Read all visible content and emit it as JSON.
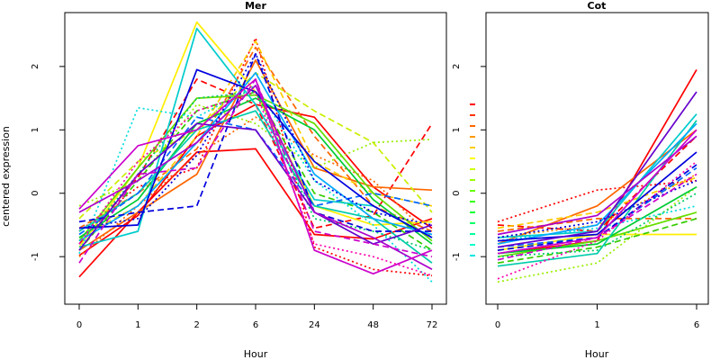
{
  "chart_data": [
    {
      "type": "line",
      "title": "Mer",
      "xlabel": "Hour",
      "ylabel": "centered expression",
      "categories": [
        "0",
        "1",
        "2",
        "6",
        "24",
        "48",
        "72"
      ],
      "ylim": [
        -1.75,
        2.85
      ],
      "yticks": [
        -1,
        0,
        1,
        2
      ],
      "legend": "none",
      "series": [
        {
          "color": "#ff0000",
          "dash": "solid",
          "values": [
            -1.32,
            -0.3,
            0.65,
            0.7,
            -0.65,
            -0.72,
            -0.4
          ]
        },
        {
          "color": "#ff0000",
          "dash": "solid",
          "values": [
            -0.98,
            -0.35,
            0.9,
            1.4,
            1.2,
            0.1,
            -0.55
          ]
        },
        {
          "color": "#ff0000",
          "dash": "dashed",
          "values": [
            -0.8,
            0.25,
            1.8,
            1.4,
            -0.55,
            -0.35,
            1.1
          ]
        },
        {
          "color": "#ff0000",
          "dash": "dotted",
          "values": [
            -0.6,
            0.1,
            0.4,
            2.45,
            -0.85,
            -1.2,
            -1.3
          ]
        },
        {
          "color": "#ff6600",
          "dash": "solid",
          "values": [
            -0.9,
            -0.3,
            0.3,
            2.1,
            0.4,
            0.1,
            0.05
          ]
        },
        {
          "color": "#ff6600",
          "dash": "dashed",
          "values": [
            -0.55,
            0.0,
            0.7,
            2.3,
            0.9,
            -0.2,
            -0.6
          ]
        },
        {
          "color": "#ff6600",
          "dash": "dotted",
          "values": [
            -1.0,
            -0.2,
            0.6,
            1.2,
            0.6,
            0.2,
            -0.7
          ]
        },
        {
          "color": "#ffcc00",
          "dash": "dashed",
          "values": [
            -0.7,
            -0.2,
            0.9,
            2.4,
            0.5,
            0.0,
            -0.2
          ]
        },
        {
          "color": "#ffee00",
          "dash": "solid",
          "values": [
            -0.85,
            0.4,
            2.7,
            1.6,
            -0.2,
            -0.5,
            -0.45
          ]
        },
        {
          "color": "#ccee00",
          "dash": "dashed",
          "values": [
            -0.4,
            0.5,
            1.0,
            1.9,
            1.3,
            0.8,
            -0.3
          ]
        },
        {
          "color": "#99ee00",
          "dash": "dotted",
          "values": [
            -0.2,
            0.2,
            1.4,
            1.1,
            0.4,
            0.8,
            0.85
          ]
        },
        {
          "color": "#66dd00",
          "dash": "solid",
          "values": [
            -0.75,
            0.4,
            1.5,
            1.55,
            1.1,
            0.0,
            -0.75
          ]
        },
        {
          "color": "#33cc00",
          "dash": "dashed",
          "values": [
            -0.9,
            0.2,
            1.3,
            1.6,
            0.0,
            -0.3,
            -0.9
          ]
        },
        {
          "color": "#00cc33",
          "dash": "solid",
          "values": [
            -0.7,
            -0.1,
            1.1,
            1.5,
            1.0,
            -0.1,
            -0.8
          ]
        },
        {
          "color": "#00cc66",
          "dash": "dotted",
          "values": [
            -0.8,
            0.3,
            1.5,
            1.6,
            -0.4,
            -0.6,
            -0.9
          ]
        },
        {
          "color": "#00ccaa",
          "dash": "solid",
          "values": [
            -0.6,
            0.0,
            1.0,
            1.3,
            -0.2,
            -0.4,
            -1.1
          ]
        },
        {
          "color": "#00dddd",
          "dash": "dotted",
          "values": [
            -0.95,
            1.35,
            1.2,
            1.7,
            0.2,
            -0.5,
            -1.4
          ]
        },
        {
          "color": "#00cccc",
          "dash": "solid",
          "values": [
            -0.85,
            -0.6,
            2.6,
            1.4,
            -0.1,
            -0.2,
            -0.7
          ]
        },
        {
          "color": "#00aaff",
          "dash": "solid",
          "values": [
            -0.75,
            -0.2,
            0.8,
            1.9,
            0.3,
            -0.4,
            -0.65
          ]
        },
        {
          "color": "#0066ff",
          "dash": "dashed",
          "values": [
            -0.65,
            0.0,
            1.2,
            1.0,
            -0.2,
            0.0,
            -0.2
          ]
        },
        {
          "color": "#0000dd",
          "dash": "solid",
          "values": [
            -0.55,
            -0.5,
            1.95,
            1.6,
            0.5,
            -0.2,
            -0.7
          ]
        },
        {
          "color": "#0000dd",
          "dash": "dashed",
          "values": [
            -0.45,
            -0.3,
            -0.2,
            2.2,
            -0.3,
            -0.6,
            -0.6
          ]
        },
        {
          "color": "#0000dd",
          "dash": "dotted",
          "values": [
            -0.55,
            -0.4,
            0.6,
            2.2,
            0.2,
            -0.3,
            -0.5
          ]
        },
        {
          "color": "#6600cc",
          "dash": "solid",
          "values": [
            -0.9,
            0.3,
            1.1,
            1.0,
            -0.3,
            -0.8,
            -0.5
          ]
        },
        {
          "color": "#aa00cc",
          "dash": "solid",
          "values": [
            -0.3,
            0.2,
            0.8,
            1.7,
            -0.3,
            -0.7,
            -1.2
          ]
        },
        {
          "color": "#cc00cc",
          "dash": "dashed",
          "values": [
            -1.1,
            0.3,
            0.4,
            1.8,
            -0.6,
            -0.8,
            -1.0
          ]
        },
        {
          "color": "#cc00cc",
          "dash": "solid",
          "values": [
            -0.25,
            0.75,
            1.0,
            1.8,
            -0.9,
            -1.27,
            -0.9
          ]
        },
        {
          "color": "#ff00aa",
          "dash": "dotted",
          "values": [
            -0.8,
            0.5,
            1.3,
            1.6,
            -0.8,
            -1.0,
            -1.3
          ]
        }
      ]
    },
    {
      "type": "line",
      "title": "Cot",
      "xlabel": "Hour",
      "ylabel": "",
      "categories": [
        "0",
        "1",
        "6"
      ],
      "ylim": [
        -1.75,
        2.85
      ],
      "yticks": [
        -1,
        0,
        1,
        2
      ],
      "legend": "left",
      "legend_swatches": [
        "#ff0000",
        "#ff3300",
        "#ff6600",
        "#ff9900",
        "#ffcc00",
        "#ffff00",
        "#ccff00",
        "#99ff00",
        "#66ff00",
        "#33ff00",
        "#00ff33",
        "#00ff66",
        "#00ff99",
        "#00ffcc",
        "#00e5e5"
      ],
      "series": [
        {
          "color": "#ff0000",
          "dash": "solid",
          "values": [
            -0.95,
            -0.75,
            1.95
          ]
        },
        {
          "color": "#ff0000",
          "dash": "dashed",
          "values": [
            -0.5,
            -0.6,
            0.9
          ]
        },
        {
          "color": "#ff0000",
          "dash": "dotted",
          "values": [
            -0.45,
            0.05,
            0.2
          ]
        },
        {
          "color": "#ff6600",
          "dash": "solid",
          "values": [
            -0.8,
            -0.2,
            1.0
          ]
        },
        {
          "color": "#ff6600",
          "dash": "dashed",
          "values": [
            -0.6,
            -0.4,
            -0.4
          ]
        },
        {
          "color": "#ff9900",
          "dash": "dotted",
          "values": [
            -0.7,
            -0.5,
            0.3
          ]
        },
        {
          "color": "#ffcc00",
          "dash": "dashed",
          "values": [
            -0.55,
            -0.3,
            0.25
          ]
        },
        {
          "color": "#ffee00",
          "dash": "solid",
          "values": [
            -0.9,
            -0.65,
            -0.65
          ]
        },
        {
          "color": "#99ee00",
          "dash": "dotted",
          "values": [
            -1.4,
            -1.1,
            0.1
          ]
        },
        {
          "color": "#66dd00",
          "dash": "solid",
          "values": [
            -1.0,
            -0.75,
            -0.3
          ]
        },
        {
          "color": "#33cc00",
          "dash": "dashed",
          "values": [
            -1.1,
            -0.85,
            -0.4
          ]
        },
        {
          "color": "#00cc33",
          "dash": "solid",
          "values": [
            -0.95,
            -0.8,
            0.1
          ]
        },
        {
          "color": "#00cc66",
          "dash": "dotted",
          "values": [
            -1.0,
            -0.9,
            0.0
          ]
        },
        {
          "color": "#00ccaa",
          "dash": "solid",
          "values": [
            -1.15,
            -0.95,
            1.15
          ]
        },
        {
          "color": "#00dddd",
          "dash": "dotted",
          "values": [
            -0.75,
            -0.55,
            -0.2
          ]
        },
        {
          "color": "#00cccc",
          "dash": "solid",
          "values": [
            -0.7,
            -0.6,
            1.25
          ]
        },
        {
          "color": "#00aaff",
          "dash": "solid",
          "values": [
            -0.8,
            -0.5,
            1.1
          ]
        },
        {
          "color": "#0066ff",
          "dash": "dashed",
          "values": [
            -0.85,
            -0.7,
            0.4
          ]
        },
        {
          "color": "#0000dd",
          "dash": "solid",
          "values": [
            -0.75,
            -0.65,
            0.65
          ]
        },
        {
          "color": "#0000dd",
          "dash": "dashed",
          "values": [
            -0.9,
            -0.7,
            0.45
          ]
        },
        {
          "color": "#0000dd",
          "dash": "dotted",
          "values": [
            -0.7,
            -0.45,
            0.2
          ]
        },
        {
          "color": "#6600cc",
          "dash": "solid",
          "values": [
            -0.85,
            -0.6,
            1.6
          ]
        },
        {
          "color": "#aa00cc",
          "dash": "solid",
          "values": [
            -0.65,
            -0.35,
            0.9
          ]
        },
        {
          "color": "#cc00cc",
          "dash": "dashed",
          "values": [
            -1.05,
            -0.7,
            0.3
          ]
        },
        {
          "color": "#cc00cc",
          "dash": "solid",
          "values": [
            -0.95,
            -0.7,
            1.0
          ]
        },
        {
          "color": "#ff00aa",
          "dash": "dotted",
          "values": [
            -1.35,
            -0.75,
            0.5
          ]
        }
      ]
    }
  ]
}
